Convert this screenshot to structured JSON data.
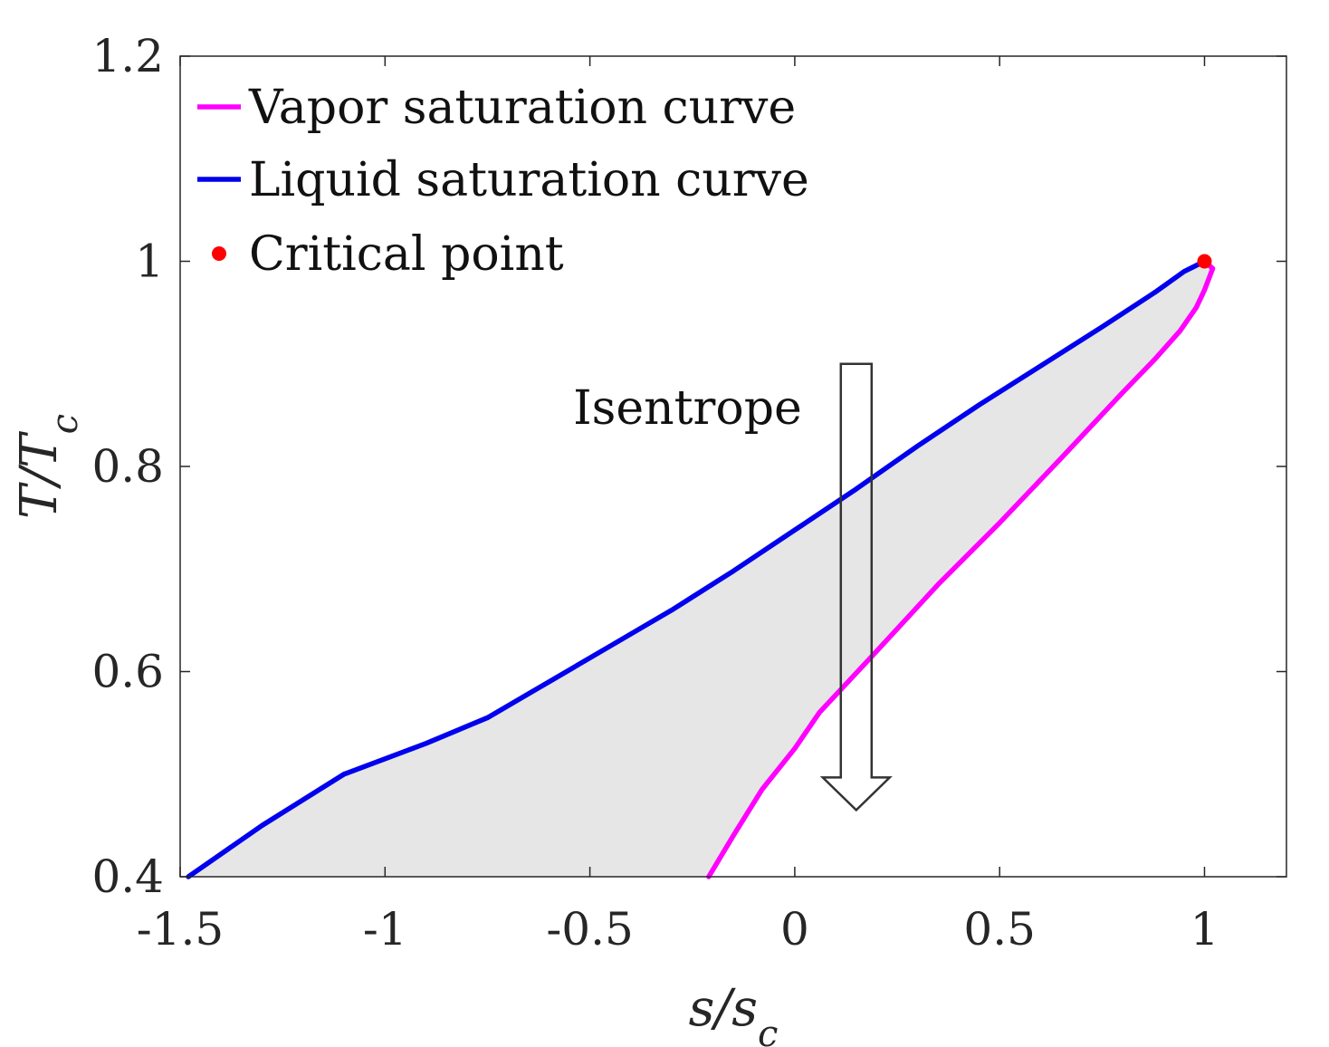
{
  "chart_data": {
    "type": "line",
    "xlabel": "s/s_c",
    "ylabel": "T/T_c",
    "xlim": [
      -1.5,
      1.2
    ],
    "ylim": [
      0.4,
      1.2
    ],
    "xticks": [
      {
        "value": -1.5,
        "label": "-1.5"
      },
      {
        "value": -1.0,
        "label": "-1"
      },
      {
        "value": -0.5,
        "label": "-0.5"
      },
      {
        "value": 0.0,
        "label": "0"
      },
      {
        "value": 0.5,
        "label": "0.5"
      },
      {
        "value": 1.0,
        "label": "1"
      }
    ],
    "yticks": [
      {
        "value": 0.4,
        "label": "0.4"
      },
      {
        "value": 0.6,
        "label": "0.6"
      },
      {
        "value": 0.8,
        "label": "0.8"
      },
      {
        "value": 1.0,
        "label": "1"
      },
      {
        "value": 1.2,
        "label": "1.2"
      }
    ],
    "grid": false,
    "legend_position": "top-left",
    "series": [
      {
        "name": "Vapor saturation curve",
        "color": "#ff00ff",
        "kind": "line",
        "x": [
          -0.21,
          -0.15,
          -0.08,
          0.0,
          0.06,
          0.2,
          0.35,
          0.5,
          0.65,
          0.8,
          0.88,
          0.94,
          0.98,
          1.0,
          1.02,
          1.0
        ],
        "y": [
          0.4,
          0.44,
          0.485,
          0.525,
          0.56,
          0.62,
          0.685,
          0.745,
          0.808,
          0.872,
          0.905,
          0.932,
          0.955,
          0.972,
          0.993,
          1.0
        ]
      },
      {
        "name": "Liquid saturation curve",
        "color": "#0000ee",
        "kind": "line",
        "x": [
          -1.48,
          -1.3,
          -1.1,
          -0.9,
          -0.75,
          -0.6,
          -0.45,
          -0.3,
          -0.15,
          0.0,
          0.15,
          0.3,
          0.45,
          0.6,
          0.75,
          0.88,
          0.95,
          1.0
        ],
        "y": [
          0.4,
          0.45,
          0.5,
          0.53,
          0.555,
          0.59,
          0.625,
          0.66,
          0.698,
          0.738,
          0.778,
          0.82,
          0.86,
          0.898,
          0.936,
          0.97,
          0.99,
          1.0
        ]
      },
      {
        "name": "Critical point",
        "color": "#ff0000",
        "kind": "point",
        "x": [
          1.0
        ],
        "y": [
          1.0
        ]
      }
    ],
    "region": {
      "color": "#e6e6e6"
    },
    "annotations": [
      {
        "text": "Isentrope",
        "type": "arrow",
        "x": 0.15,
        "y_start": 0.9,
        "y_end": 0.465
      }
    ]
  }
}
